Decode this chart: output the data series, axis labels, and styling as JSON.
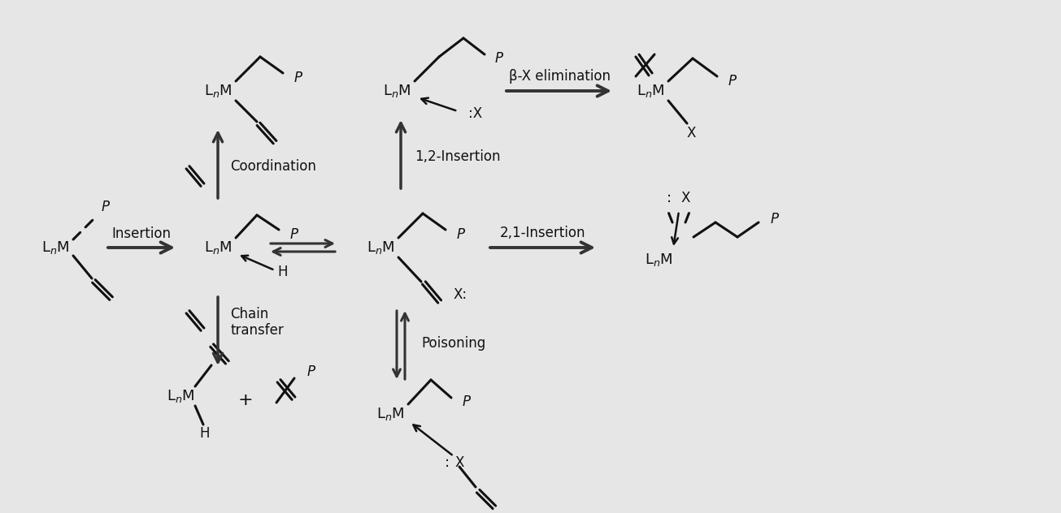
{
  "bg_color": "#e6e6e6",
  "text_color": "#111111",
  "arrow_color": "#333333",
  "fig_width": 13.05,
  "fig_height": 6.32,
  "labels": {
    "insertion": "Insertion",
    "coordination": "Coordination",
    "chain_transfer": "Chain\ntransfer",
    "poisoning": "Poisoning",
    "beta_x_elim": "β-X elimination",
    "one_two_insert": "1,2-Insertion",
    "two_one_insert": "2,1-Insertion"
  }
}
